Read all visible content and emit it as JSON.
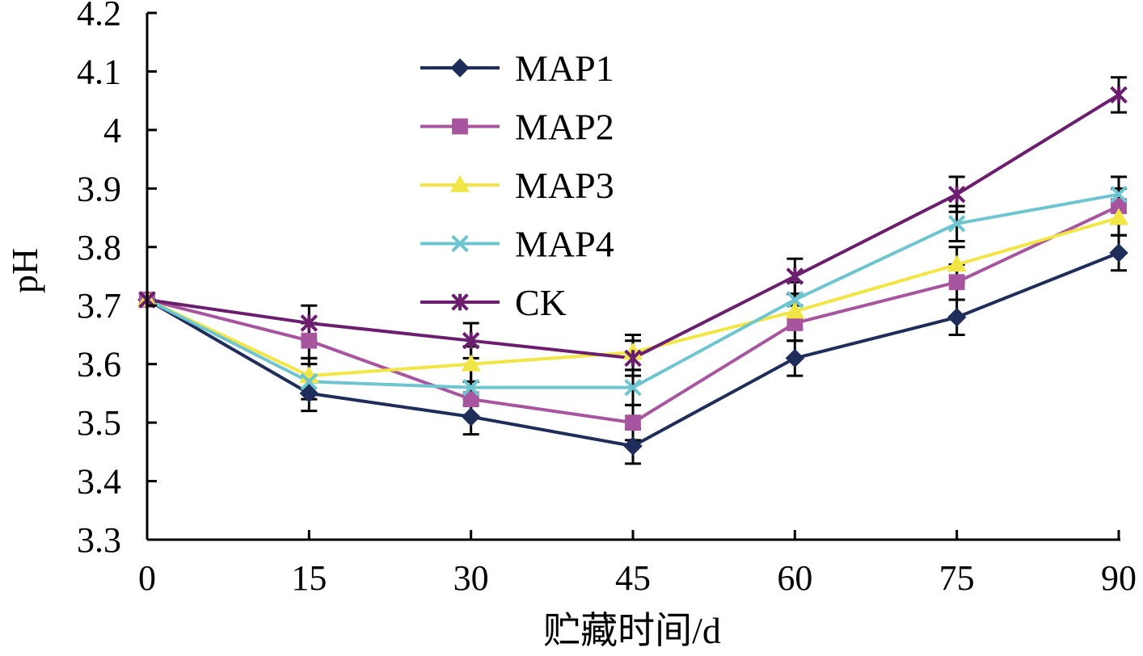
{
  "chart_data": {
    "type": "line",
    "title": "",
    "xlabel": "贮藏时间/d",
    "ylabel": "pH",
    "x": [
      0,
      15,
      30,
      45,
      60,
      75,
      90
    ],
    "xlim": [
      0,
      90
    ],
    "ylim": [
      3.3,
      4.2
    ],
    "yticks": [
      "3.3",
      "3.4",
      "3.5",
      "3.6",
      "3.7",
      "3.8",
      "3.9",
      "4",
      "4.1",
      "4.2"
    ],
    "xticks": [
      "0",
      "15",
      "30",
      "45",
      "60",
      "75",
      "90"
    ],
    "grid": false,
    "legend_position": "top-center",
    "series": [
      {
        "name": "MAP1",
        "color": "#1f2d5a",
        "marker": "diamond",
        "values": [
          3.71,
          3.55,
          3.51,
          3.46,
          3.61,
          3.68,
          3.79
        ],
        "errors": [
          0,
          0.03,
          0.03,
          0.03,
          0.03,
          0.03,
          0.03
        ]
      },
      {
        "name": "MAP2",
        "color": "#a8559f",
        "marker": "square",
        "values": [
          3.71,
          3.64,
          3.54,
          3.5,
          3.67,
          3.74,
          3.87
        ],
        "errors": [
          0,
          0.03,
          0.03,
          0.03,
          0.03,
          0.03,
          0.03
        ]
      },
      {
        "name": "MAP3",
        "color": "#f1e646",
        "marker": "triangle",
        "values": [
          3.71,
          3.58,
          3.6,
          3.62,
          3.69,
          3.77,
          3.85
        ],
        "errors": [
          0,
          0.03,
          0.03,
          0.03,
          0.03,
          0.03,
          0.03
        ]
      },
      {
        "name": "MAP4",
        "color": "#6fc5cf",
        "marker": "x",
        "values": [
          3.71,
          3.57,
          3.56,
          3.56,
          3.71,
          3.84,
          3.89
        ],
        "errors": [
          0,
          0.03,
          0.03,
          0.03,
          0.03,
          0.03,
          0.03
        ]
      },
      {
        "name": "CK",
        "color": "#6b1d6e",
        "marker": "star",
        "values": [
          3.71,
          3.67,
          3.64,
          3.61,
          3.75,
          3.89,
          4.06
        ],
        "errors": [
          0,
          0.03,
          0.03,
          0.03,
          0.03,
          0.03,
          0.03
        ]
      }
    ]
  }
}
